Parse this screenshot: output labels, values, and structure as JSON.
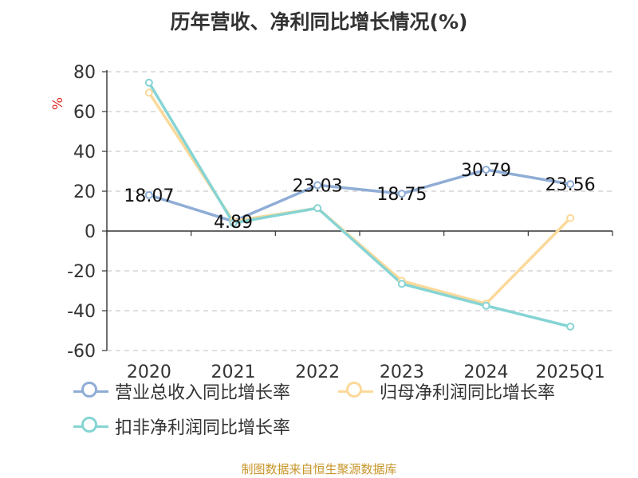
{
  "chart_data": {
    "type": "line",
    "title": "历年营收、净利同比增长情况(%)",
    "ylabel": "%",
    "xlabel": "",
    "categories": [
      "2020",
      "2021",
      "2022",
      "2023",
      "2024",
      "2025Q1"
    ],
    "ylim": [
      -60,
      80
    ],
    "yticks": [
      80,
      60,
      40,
      20,
      0,
      -20,
      -40,
      -60
    ],
    "grid": true,
    "legend_position": "bottom",
    "series": [
      {
        "name": "营业总收入同比增长率",
        "color": "#8fadd6",
        "values": [
          18.07,
          4.89,
          23.03,
          18.75,
          30.79,
          23.56
        ],
        "data_labels": [
          "18.07",
          "4.89",
          "23.03",
          "18.75",
          "30.79",
          "23.56"
        ]
      },
      {
        "name": "归母净利润同比增长率",
        "color": "#fbd99a",
        "values": [
          69.5,
          5.0,
          11.5,
          -25.0,
          -36.5,
          6.5
        ]
      },
      {
        "name": "扣非净利润同比增长率",
        "color": "#86d4d4",
        "values": [
          74.5,
          4.0,
          11.5,
          -26.5,
          -37.5,
          -48.0
        ]
      }
    ]
  },
  "source_note": "制图数据来自恒生聚源数据库"
}
